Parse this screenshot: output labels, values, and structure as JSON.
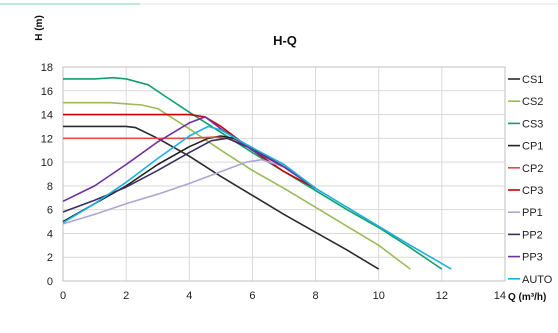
{
  "chart_data": {
    "type": "line",
    "title": "H-Q",
    "xlabel": "Q (m³/h)",
    "ylabel": "H (m)",
    "xlim": [
      0,
      14
    ],
    "ylim": [
      0,
      18
    ],
    "xticks": [
      0,
      2,
      4,
      6,
      8,
      10,
      12,
      14
    ],
    "yticks": [
      0,
      2,
      4,
      6,
      8,
      10,
      12,
      14,
      16,
      18
    ],
    "grid": true,
    "legend_position": "right",
    "series": [
      {
        "name": "CS1",
        "color": "#2b2b2b",
        "points": [
          [
            0,
            13
          ],
          [
            1,
            13
          ],
          [
            2,
            13
          ],
          [
            2.3,
            12.9
          ],
          [
            3,
            12
          ],
          [
            4,
            10.5
          ],
          [
            5,
            8.8
          ],
          [
            6,
            7.2
          ],
          [
            7,
            5.6
          ],
          [
            8,
            4.1
          ],
          [
            9,
            2.6
          ],
          [
            10,
            1
          ]
        ]
      },
      {
        "name": "CS2",
        "color": "#9bbb59",
        "points": [
          [
            0,
            15
          ],
          [
            1.5,
            15
          ],
          [
            2.5,
            14.8
          ],
          [
            3,
            14.5
          ],
          [
            4,
            12.8
          ],
          [
            5,
            11
          ],
          [
            6,
            9.3
          ],
          [
            7,
            7.8
          ],
          [
            8,
            6.2
          ],
          [
            9,
            4.6
          ],
          [
            10,
            3
          ],
          [
            11,
            1
          ]
        ]
      },
      {
        "name": "CS3",
        "color": "#12a06a",
        "points": [
          [
            0,
            17
          ],
          [
            1,
            17
          ],
          [
            1.6,
            17.1
          ],
          [
            2,
            17
          ],
          [
            2.7,
            16.5
          ],
          [
            3.2,
            15.6
          ],
          [
            4,
            14.2
          ],
          [
            5,
            12.5
          ],
          [
            6,
            10.8
          ],
          [
            7,
            9.2
          ],
          [
            8,
            7.6
          ],
          [
            9,
            6
          ],
          [
            10,
            4.5
          ],
          [
            11,
            2.8
          ],
          [
            12,
            1
          ]
        ]
      },
      {
        "name": "CP1",
        "color": "#222222",
        "points": [
          [
            0,
            5
          ],
          [
            1,
            6.5
          ],
          [
            2,
            8
          ],
          [
            3,
            9.8
          ],
          [
            4,
            11.3
          ],
          [
            4.6,
            12
          ],
          [
            5,
            12.2
          ],
          [
            5.4,
            12
          ],
          [
            6,
            11.2
          ],
          [
            7,
            9.6
          ],
          [
            8,
            7.8
          ]
        ]
      },
      {
        "name": "CP2",
        "color": "#e74c3c",
        "points": [
          [
            0,
            12
          ],
          [
            4,
            12
          ],
          [
            4.8,
            12.1
          ],
          [
            5.2,
            12
          ],
          [
            6,
            11.2
          ],
          [
            7,
            9.6
          ],
          [
            8,
            7.8
          ]
        ]
      },
      {
        "name": "CP3",
        "color": "#cc0000",
        "points": [
          [
            0,
            14
          ],
          [
            4,
            14
          ],
          [
            4.5,
            13.8
          ],
          [
            5,
            13
          ],
          [
            6,
            11
          ],
          [
            7,
            9.2
          ],
          [
            8,
            7.8
          ]
        ]
      },
      {
        "name": "PP1",
        "color": "#b0a4d4",
        "points": [
          [
            0,
            4.8
          ],
          [
            1,
            5.6
          ],
          [
            2,
            6.5
          ],
          [
            3,
            7.3
          ],
          [
            4,
            8.2
          ],
          [
            5,
            9.2
          ],
          [
            5.8,
            10
          ],
          [
            6.3,
            10.2
          ],
          [
            7,
            9.6
          ],
          [
            8,
            7.8
          ]
        ]
      },
      {
        "name": "PP2",
        "color": "#3a3060",
        "points": [
          [
            0,
            5.8
          ],
          [
            1,
            6.8
          ],
          [
            2,
            7.9
          ],
          [
            3,
            9.3
          ],
          [
            4,
            10.8
          ],
          [
            4.7,
            11.8
          ],
          [
            5.2,
            12
          ],
          [
            6,
            11.1
          ],
          [
            7,
            9.6
          ],
          [
            8,
            7.8
          ]
        ]
      },
      {
        "name": "PP3",
        "color": "#7030a0",
        "points": [
          [
            0,
            6.7
          ],
          [
            1,
            8
          ],
          [
            2,
            9.8
          ],
          [
            3,
            11.7
          ],
          [
            4,
            13.3
          ],
          [
            4.5,
            13.8
          ],
          [
            5,
            12.8
          ],
          [
            6,
            11
          ],
          [
            7,
            9.6
          ],
          [
            8,
            7.8
          ]
        ]
      },
      {
        "name": "AUTO",
        "color": "#1ab1e0",
        "points": [
          [
            0,
            4.9
          ],
          [
            1,
            6.5
          ],
          [
            2,
            8.3
          ],
          [
            3,
            10.3
          ],
          [
            4,
            12.2
          ],
          [
            4.6,
            13
          ],
          [
            5,
            12.7
          ],
          [
            6,
            11.2
          ],
          [
            7,
            9.8
          ],
          [
            8,
            7.8
          ],
          [
            9,
            6.2
          ],
          [
            10,
            4.6
          ],
          [
            11,
            3
          ],
          [
            12.3,
            1
          ]
        ]
      }
    ]
  }
}
